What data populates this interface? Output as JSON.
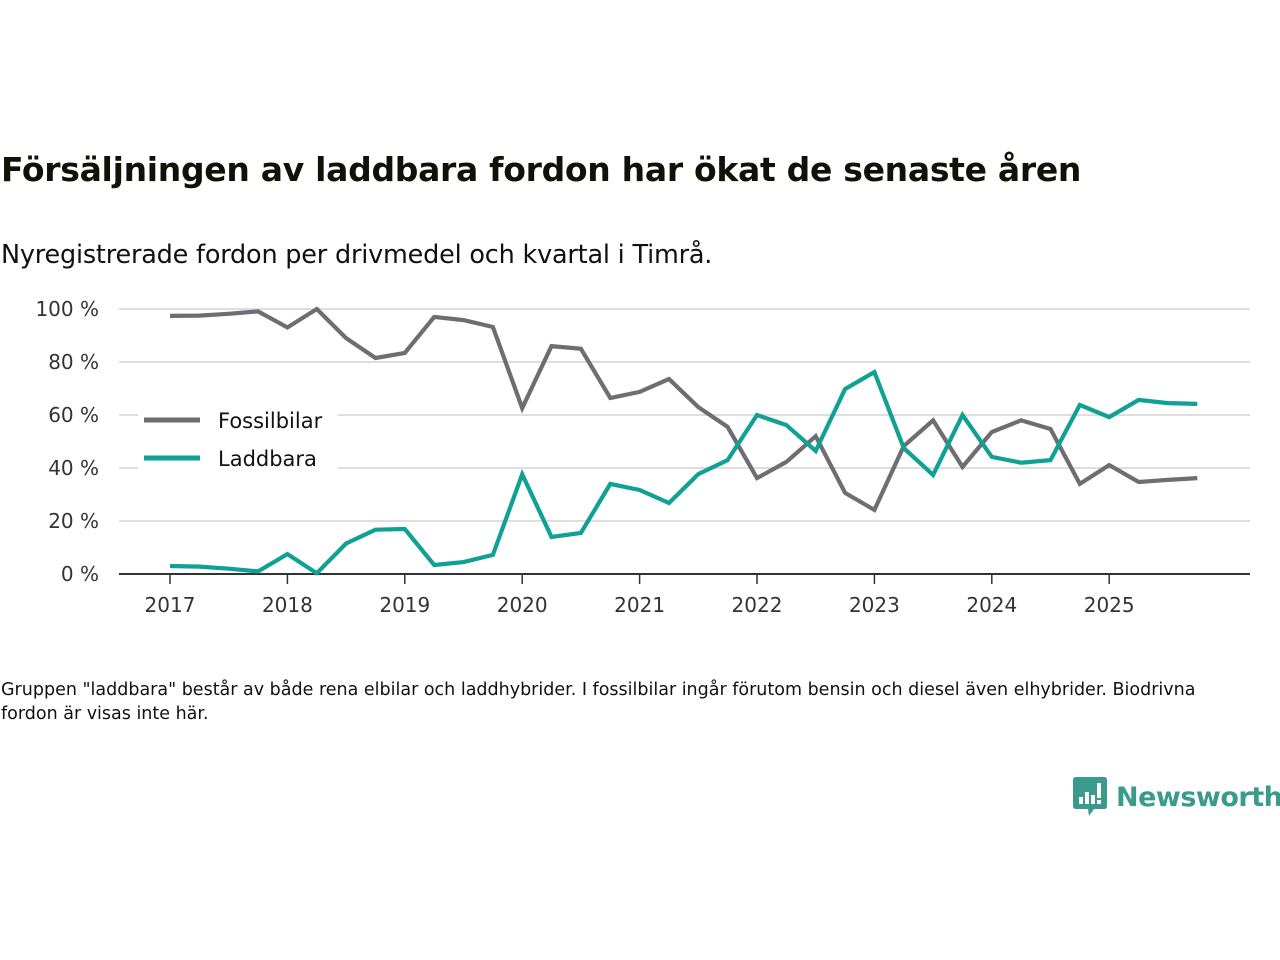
{
  "title": "Försäljningen av laddbara fordon har ökat de senaste åren",
  "subtitle": "Nyregistrerade fordon per drivmedel och kvartal i Timrå.",
  "note": "Gruppen \"laddbara\" består av både rena elbilar och laddhybrider. I fossilbilar ingår förutom bensin och diesel även elhybrider. Biodrivna fordon är visas inte här.",
  "logo": {
    "icon": "newsworthy-chart-bubble-icon",
    "text": "Newsworthy",
    "color": "#3a9a8c"
  },
  "chart_data": {
    "type": "line",
    "title": "Försäljningen av laddbara fordon har ökat de senaste åren",
    "subtitle": "Nyregistrerade fordon per drivmedel och kvartal i Timrå.",
    "xlabel": "",
    "ylabel": "",
    "x": [
      "2017Q1",
      "2017Q2",
      "2017Q3",
      "2017Q4",
      "2018Q1",
      "2018Q2",
      "2018Q3",
      "2018Q4",
      "2019Q1",
      "2019Q2",
      "2019Q3",
      "2019Q4",
      "2020Q1",
      "2020Q2",
      "2020Q3",
      "2020Q4",
      "2021Q1",
      "2021Q2",
      "2021Q3",
      "2021Q4",
      "2022Q1",
      "2022Q2",
      "2022Q3",
      "2022Q4",
      "2023Q1",
      "2023Q2",
      "2023Q3",
      "2023Q4",
      "2024Q1",
      "2024Q2",
      "2024Q3",
      "2024Q4",
      "2025Q1",
      "2025Q2",
      "2025Q3",
      "2025Q4"
    ],
    "x_ticks": [
      "2017",
      "2018",
      "2019",
      "2020",
      "2021",
      "2022",
      "2023",
      "2024",
      "2025"
    ],
    "y_ticks": [
      "0 %",
      "20 %",
      "40 %",
      "60 %",
      "80 %",
      "100 %"
    ],
    "y_tick_values": [
      0,
      20,
      40,
      60,
      80,
      100
    ],
    "ylim": [
      0,
      100
    ],
    "grid": true,
    "legend_position": "left-middle",
    "series": [
      {
        "name": "Fossilbilar",
        "color": "#6e6d73",
        "values": [
          97.4,
          97.5,
          98.2,
          99.1,
          93.0,
          100.0,
          89.0,
          81.5,
          83.4,
          97.0,
          95.8,
          93.2,
          62.6,
          86.0,
          85.0,
          66.4,
          68.7,
          73.6,
          63.0,
          55.5,
          36.2,
          42.3,
          52.0,
          30.6,
          24.2,
          48.3,
          58.0,
          40.4,
          53.6,
          58.0,
          54.7,
          34.0,
          41.1,
          34.7,
          35.5,
          36.2
        ]
      },
      {
        "name": "Laddbara",
        "color": "#0fa193",
        "values": [
          3.0,
          2.8,
          2.0,
          1.0,
          7.5,
          0.3,
          11.5,
          16.7,
          17.0,
          3.4,
          4.5,
          7.2,
          37.6,
          14.0,
          15.5,
          34.0,
          31.7,
          26.8,
          37.7,
          43.0,
          60.0,
          56.2,
          46.4,
          69.8,
          76.2,
          47.5,
          37.4,
          60.0,
          44.2,
          42.0,
          43.0,
          63.8,
          59.2,
          65.7,
          64.5,
          64.2
        ]
      }
    ]
  }
}
